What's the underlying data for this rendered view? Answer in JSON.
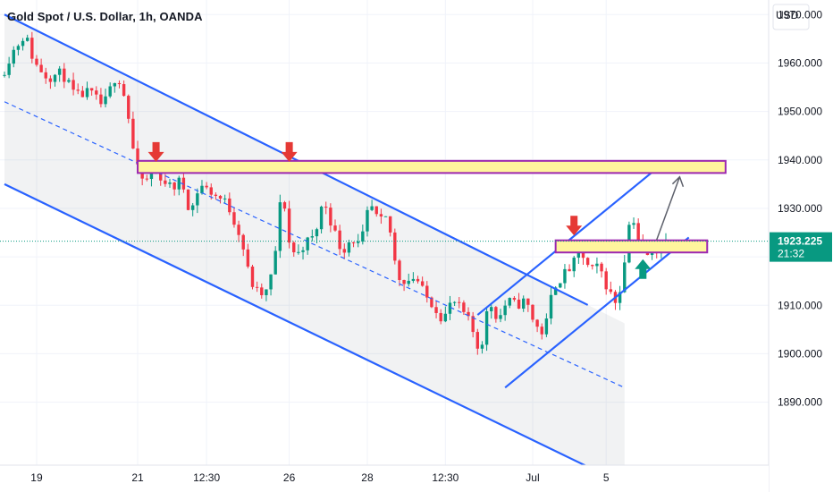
{
  "header": {
    "title": "Gold Spot / U.S. Dollar, 1h, OANDA",
    "currency": "USD"
  },
  "colors": {
    "up": "#089981",
    "down": "#f23645",
    "channel": "#2962ff",
    "zone_fill": "#fff59d",
    "zone_border": "#9c27b0",
    "arrow_down": "#e53935",
    "arrow_up": "#089981",
    "price_badge": "#089981",
    "projection": "#5d606b"
  },
  "chart_data": {
    "type": "candlestick",
    "symbol": "Gold Spot / U.S. Dollar",
    "timeframe": "1h",
    "source": "OANDA",
    "x_ticks": [
      "19",
      "21",
      "12:30",
      "26",
      "28",
      "12:30",
      "Jul",
      "5"
    ],
    "y_ticks": [
      1890,
      1900,
      1910,
      1920,
      1930,
      1940,
      1950,
      1960,
      1970
    ],
    "y_tick_labels": [
      "1890.000",
      "1900.000",
      "1910.000",
      "1920.000",
      "1930.000",
      "1940.000",
      "1950.000",
      "1960.000",
      "1970.000"
    ],
    "ylim": [
      1877,
      1973
    ],
    "current_price": "1923.225",
    "countdown": "21:32",
    "price_path": [
      [
        0,
        1957.5
      ],
      [
        2,
        1962
      ],
      [
        5,
        1966
      ],
      [
        7,
        1960
      ],
      [
        10,
        1957
      ],
      [
        13,
        1958
      ],
      [
        16,
        1953
      ],
      [
        19,
        1954
      ],
      [
        22,
        1951
      ],
      [
        25,
        1958
      ],
      [
        27,
        1952
      ],
      [
        29,
        1939
      ],
      [
        31,
        1935
      ],
      [
        33,
        1938
      ],
      [
        35,
        1936
      ],
      [
        37,
        1934
      ],
      [
        39,
        1936
      ],
      [
        41,
        1929
      ],
      [
        43,
        1935
      ],
      [
        46,
        1933
      ],
      [
        49,
        1931
      ],
      [
        52,
        1924
      ],
      [
        54,
        1915
      ],
      [
        56,
        1912
      ],
      [
        58,
        1913
      ],
      [
        60,
        1924
      ],
      [
        61,
        1937
      ],
      [
        62,
        1924
      ],
      [
        64,
        1920
      ],
      [
        66,
        1923
      ],
      [
        68,
        1924
      ],
      [
        70,
        1932
      ],
      [
        72,
        1926
      ],
      [
        74,
        1921
      ],
      [
        76,
        1924
      ],
      [
        78,
        1922
      ],
      [
        80,
        1931
      ],
      [
        82,
        1927
      ],
      [
        84,
        1928
      ],
      [
        86,
        1916
      ],
      [
        88,
        1915
      ],
      [
        90,
        1916
      ],
      [
        92,
        1912
      ],
      [
        94,
        1910
      ],
      [
        96,
        1907
      ],
      [
        98,
        1911
      ],
      [
        100,
        1909
      ],
      [
        102,
        1906
      ],
      [
        104,
        1900
      ],
      [
        106,
        1911
      ],
      [
        108,
        1907
      ],
      [
        110,
        1911
      ],
      [
        112,
        1910
      ],
      [
        114,
        1911
      ],
      [
        116,
        1906
      ],
      [
        118,
        1904
      ],
      [
        120,
        1914
      ],
      [
        122,
        1916
      ],
      [
        124,
        1918
      ],
      [
        126,
        1921
      ],
      [
        128,
        1917
      ],
      [
        130,
        1918
      ],
      [
        132,
        1913
      ],
      [
        134,
        1910
      ],
      [
        136,
        1923
      ],
      [
        137,
        1930
      ],
      [
        139,
        1921
      ],
      [
        141,
        1920
      ],
      [
        143,
        1922
      ],
      [
        144,
        1923.2
      ]
    ],
    "channel_lower_points": [
      [
        0,
        1935
      ],
      [
        135,
        1873
      ]
    ],
    "channel_upper_points": [
      [
        0,
        1970
      ],
      [
        125,
        1911
      ]
    ],
    "channel_mid_points": [
      [
        0,
        1952
      ],
      [
        135,
        1893
      ]
    ],
    "rising_lower_points": [
      [
        109,
        1893
      ],
      [
        149,
        1924
      ]
    ],
    "rising_upper_points": [
      [
        103,
        1908
      ],
      [
        143,
        1939
      ]
    ],
    "resistance_zone": [
      1937.3,
      1939.8
    ],
    "support_zone": [
      1920.9,
      1923.4
    ],
    "projection_target": 1936.5
  }
}
